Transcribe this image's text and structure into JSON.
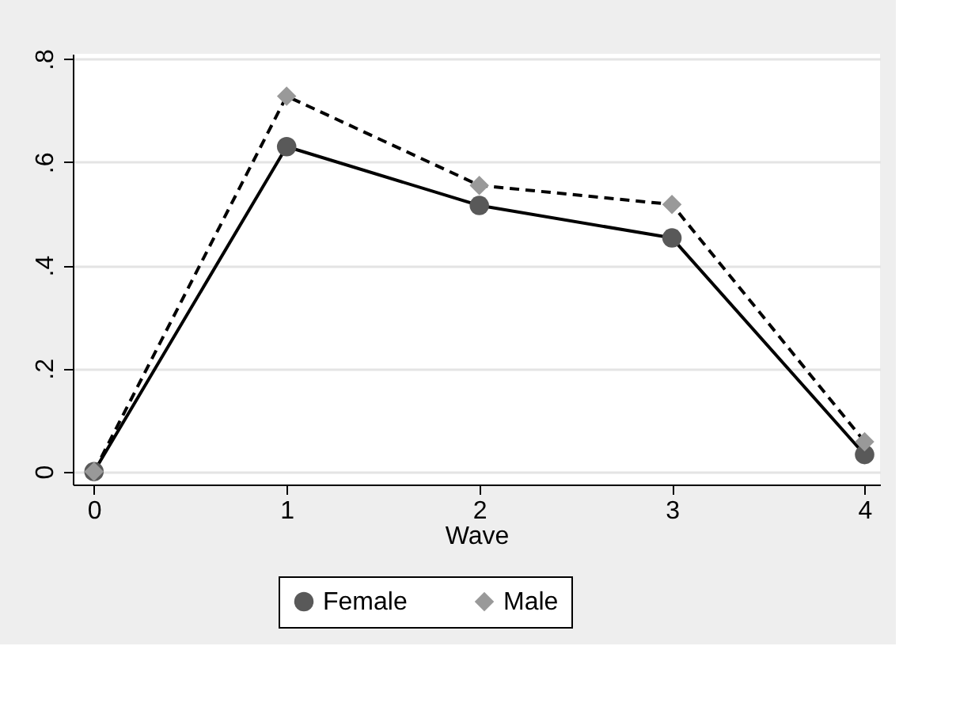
{
  "chart_data": {
    "type": "line",
    "xlabel": "Wave",
    "x": [
      0,
      1,
      2,
      3,
      4
    ],
    "series": [
      {
        "name": "Female",
        "color": "#595959",
        "values": [
          0,
          0.63,
          0.516,
          0.453,
          0.033
        ],
        "marker": "circle",
        "line_style": "solid"
      },
      {
        "name": "Male",
        "color": "#999999",
        "values": [
          0,
          0.728,
          0.555,
          0.518,
          0.058
        ],
        "marker": "diamond",
        "line_style": "dashed"
      }
    ],
    "xlim": [
      -0.11,
      4.08
    ],
    "xticks": [
      0,
      1,
      2,
      3,
      4
    ],
    "ylim": [
      -0.025,
      0.81
    ],
    "yticks": [
      0,
      {
        "value": 0.2,
        "label": ".2"
      },
      {
        "value": 0.4,
        "label": ".4"
      },
      {
        "value": 0.6,
        "label": ".6"
      },
      {
        "value": 0.8,
        "label": ".8"
      }
    ],
    "grid": "y",
    "legend": "bottom"
  }
}
